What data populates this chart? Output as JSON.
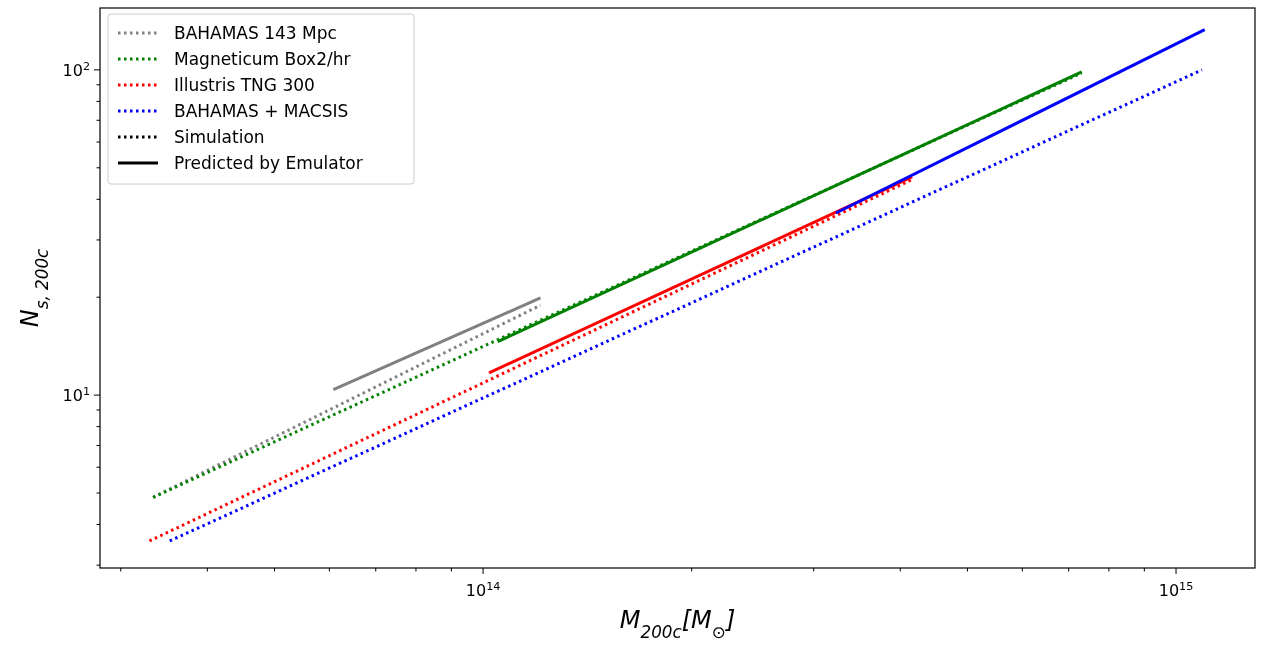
{
  "chart_data": {
    "type": "line",
    "xlabel": "M$_{200c}$[M$_{⊙}$]",
    "ylabel": "N$_{s, 200c}$",
    "log": "xy",
    "grid": false,
    "legend": "top left",
    "xlim": [
      28000000000000.0,
      1300000000000000.0
    ],
    "ylim": [
      2.94,
      155
    ],
    "xticks": [
      {
        "value": 30000000000000.0,
        "label": null
      },
      {
        "value": 40000000000000.0,
        "label": null
      },
      {
        "value": 50000000000000.0,
        "label": null
      },
      {
        "value": 60000000000000.0,
        "label": null
      },
      {
        "value": 70000000000000.0,
        "label": null
      },
      {
        "value": 80000000000000.0,
        "label": null
      },
      {
        "value": 90000000000000.0,
        "label": null
      },
      {
        "value": 100000000000000.0,
        "label": "10$^{14}$"
      },
      {
        "value": 200000000000000.0,
        "label": null
      },
      {
        "value": 300000000000000.0,
        "label": null
      },
      {
        "value": 400000000000000.0,
        "label": null
      },
      {
        "value": 500000000000000.0,
        "label": null
      },
      {
        "value": 600000000000000.0,
        "label": null
      },
      {
        "value": 700000000000000.0,
        "label": null
      },
      {
        "value": 800000000000000.0,
        "label": null
      },
      {
        "value": 900000000000000.0,
        "label": null
      },
      {
        "value": 1000000000000000.0,
        "label": "10$^{15}$"
      }
    ],
    "yticks": [
      {
        "value": 3,
        "label": null
      },
      {
        "value": 4,
        "label": null
      },
      {
        "value": 5,
        "label": null
      },
      {
        "value": 6,
        "label": null
      },
      {
        "value": 7,
        "label": null
      },
      {
        "value": 8,
        "label": null
      },
      {
        "value": 9,
        "label": null
      },
      {
        "value": 10,
        "label": "10$^{1}$"
      },
      {
        "value": 20,
        "label": null
      },
      {
        "value": 30,
        "label": null
      },
      {
        "value": 40,
        "label": null
      },
      {
        "value": 50,
        "label": null
      },
      {
        "value": 60,
        "label": null
      },
      {
        "value": 70,
        "label": null
      },
      {
        "value": 80,
        "label": null
      },
      {
        "value": 90,
        "label": null
      },
      {
        "value": 100,
        "label": "10$^{2}$"
      }
    ],
    "series": [
      {
        "name": "BAHAMAS 143 Mpc",
        "color": "#808080",
        "line_style": "dotted",
        "x": [
          33400000000000.0,
          121000000000000.0
        ],
        "values": [
          4.85,
          18.9
        ]
      },
      {
        "name": "Magneticum Box2/hr",
        "color": "#008000",
        "line_style": "dotted",
        "x": [
          33400000000000.0,
          731000000000000.0
        ],
        "values": [
          4.85,
          97.9
        ]
      },
      {
        "name": "Illustris TNG 300",
        "color": "#ff0000",
        "line_style": "dotted",
        "x": [
          33000000000000.0,
          416000000000000.0
        ],
        "values": [
          3.56,
          46
        ]
      },
      {
        "name": "BAHAMAS + MACSIS",
        "color": "#0000ff",
        "line_style": "dotted",
        "x": [
          35300000000000.0,
          1090000000000000.0
        ],
        "values": [
          3.56,
          100
        ]
      },
      {
        "name": "Simulation",
        "color": "#000000",
        "line_style": "dotted"
      },
      {
        "name": "Predicted by Emulator",
        "color": "#000000",
        "line_style": "solid"
      },
      {
        "color": "#808080",
        "line_style": "solid",
        "x": [
          60800000000000.0,
          121000000000000.0
        ],
        "values": [
          10.4,
          19.9
        ]
      },
      {
        "color": "#008000",
        "line_style": "solid",
        "x": [
          105000000000000.0,
          731000000000000.0
        ],
        "values": [
          14.6,
          98.6
        ]
      },
      {
        "color": "#ff0000",
        "line_style": "solid",
        "x": [
          102000000000000.0,
          416000000000000.0
        ],
        "values": [
          11.7,
          46.9
        ]
      },
      {
        "color": "#0000ff",
        "line_style": "solid",
        "x": [
          323000000000000.0,
          1100000000000000.0
        ],
        "values": [
          36.3,
          133
        ]
      }
    ]
  }
}
